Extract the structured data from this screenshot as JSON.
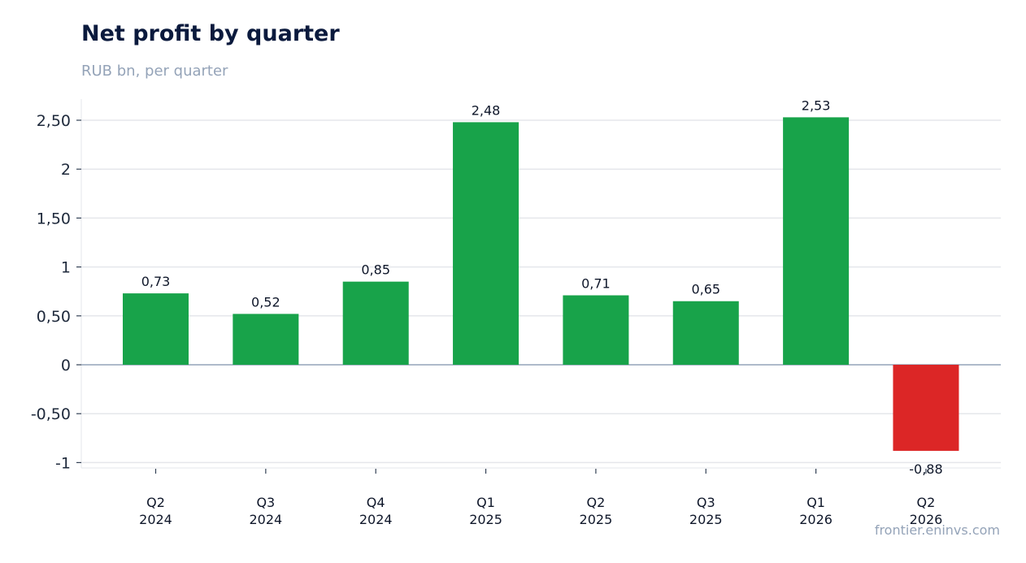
{
  "header": {
    "title": "Net profit by quarter",
    "subtitle": "RUB bn, per quarter"
  },
  "footer": {
    "source": "frontier.eninvs.com"
  },
  "chart_data": {
    "type": "bar",
    "title": "Net profit by quarter",
    "subtitle": "RUB bn, per quarter",
    "xlabel": "",
    "ylabel": "",
    "categories": [
      [
        "Q2",
        "2024"
      ],
      [
        "Q3",
        "2024"
      ],
      [
        "Q4",
        "2024"
      ],
      [
        "Q1",
        "2025"
      ],
      [
        "Q2",
        "2025"
      ],
      [
        "Q3",
        "2025"
      ],
      [
        "Q1",
        "2026"
      ],
      [
        "Q2",
        "2026"
      ]
    ],
    "values": [
      0.73,
      0.52,
      0.85,
      2.48,
      0.71,
      0.65,
      2.53,
      -0.88
    ],
    "value_labels": [
      "0,73",
      "0,52",
      "0,85",
      "2,48",
      "0,71",
      "0,65",
      "2,53",
      "-0,88"
    ],
    "yticks": [
      2.5,
      2,
      1.5,
      1,
      0.5,
      0,
      -0.5,
      -1
    ],
    "ytick_labels": [
      "2,50",
      "2",
      "1,50",
      "1",
      "0,50",
      "0",
      "-0,50",
      "-1"
    ],
    "ylim": [
      -1.05,
      2.71
    ],
    "grid": true,
    "legend": "none",
    "colors": {
      "positive": "#18a34a",
      "negative": "#dc2626",
      "grid": "#e5e7eb",
      "zero": "#94a3b8"
    }
  }
}
